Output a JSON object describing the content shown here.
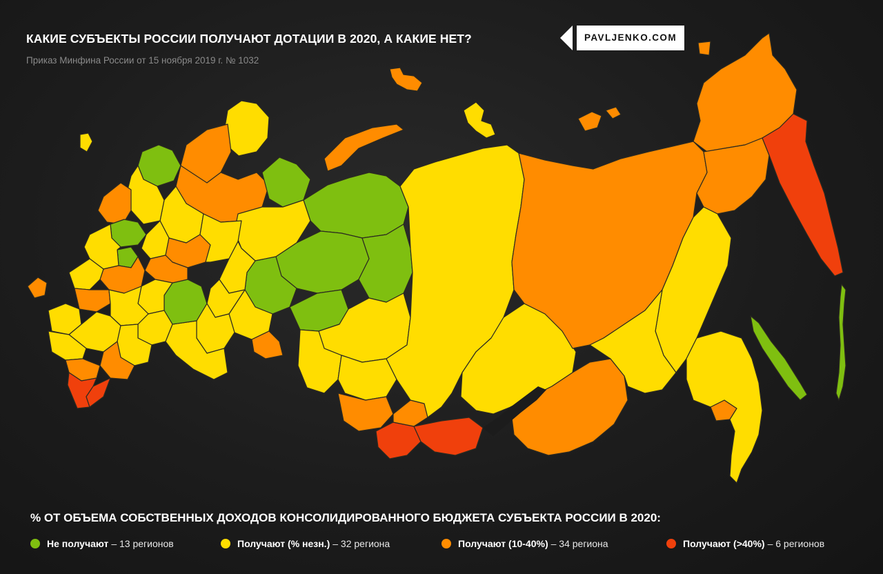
{
  "header": {
    "title": "КАКИЕ СУБЪЕКТЫ РОССИИ ПОЛУЧАЮТ ДОТАЦИИ В 2020, А КАКИЕ НЕТ?",
    "subtitle": "Приказ Минфина России от 15 ноября 2019 г. № 1032",
    "logo": "PAVLJENKO.COM"
  },
  "legend": {
    "title": "% ОТ ОБЪЕМА СОБСТВЕННЫХ ДОХОДОВ КОНСОЛИДИРОВАННОГО БЮДЖЕТА СУБЪЕКТА РОССИИ В 2020:",
    "items": [
      {
        "label": "Не получают",
        "count": "– 13 регионов",
        "color": "#7fbf10"
      },
      {
        "label": "Получают (% незн.)",
        "count": "– 32 региона",
        "color": "#ffdd00"
      },
      {
        "label": "Получают (10-40%)",
        "count": "– 34 региона",
        "color": "#ff8c00"
      },
      {
        "label": "Получают (>40%)",
        "count": "– 6 регионов",
        "color": "#f0400c"
      }
    ]
  },
  "colors": {
    "none": "#7fbf10",
    "unknown": "#ffdd00",
    "mid": "#ff8c00",
    "high": "#f0400c",
    "background": "#1c1c1c"
  }
}
